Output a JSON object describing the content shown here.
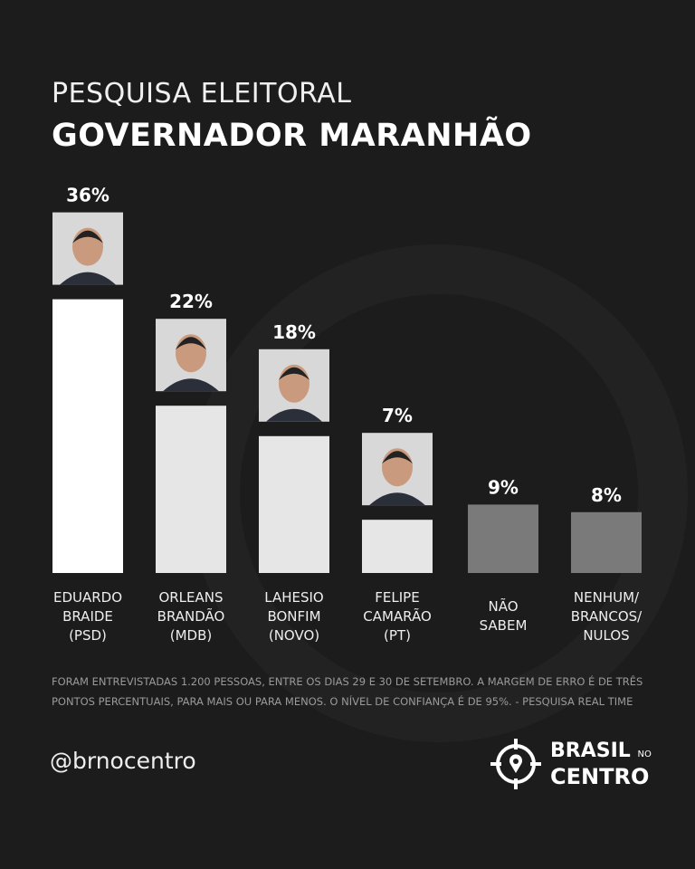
{
  "header": {
    "subtitle": "PESQUISA ELEITORAL",
    "title": "GOVERNADOR MARANHÃO"
  },
  "chart_data": {
    "type": "bar",
    "categories": [
      [
        "EDUARDO",
        "BRAIDE",
        "(PSD)"
      ],
      [
        "ORLEANS",
        "BRANDÃO",
        "(MDB)"
      ],
      [
        "LAHESIO",
        "BONFIM",
        "(NOVO)"
      ],
      [
        "FELIPE",
        "CAMARÃO",
        "(PT)"
      ],
      [
        "NÃO",
        "SABEM"
      ],
      [
        "NENHUM/",
        "BRANCOS/",
        "NULOS"
      ]
    ],
    "values": [
      36,
      22,
      18,
      7,
      9,
      8
    ],
    "value_labels": [
      "36%",
      "22%",
      "18%",
      "7%",
      "9%",
      "8%"
    ],
    "has_photo": [
      true,
      true,
      true,
      true,
      false,
      false
    ],
    "colors": [
      "#ffffff",
      "#e6e6e6",
      "#e6e6e6",
      "#e6e6e6",
      "#7a7a7a",
      "#7a7a7a"
    ],
    "grid": false
  },
  "footer": {
    "note": "FORAM ENTREVISTADAS 1.200 PESSOAS, ENTRE OS DIAS 29 E 30 DE SETEMBRO. A MARGEM DE ERRO É DE TRÊS PONTOS PERCENTUAIS, PARA MAIS OU PARA MENOS. O NÍVEL DE CONFIANÇA É DE 95%. - PESQUISA REAL TIME",
    "handle": "@brnocentro",
    "logo": {
      "line1": "BRASIL",
      "small": "NO",
      "line2": "CENTRO"
    }
  }
}
